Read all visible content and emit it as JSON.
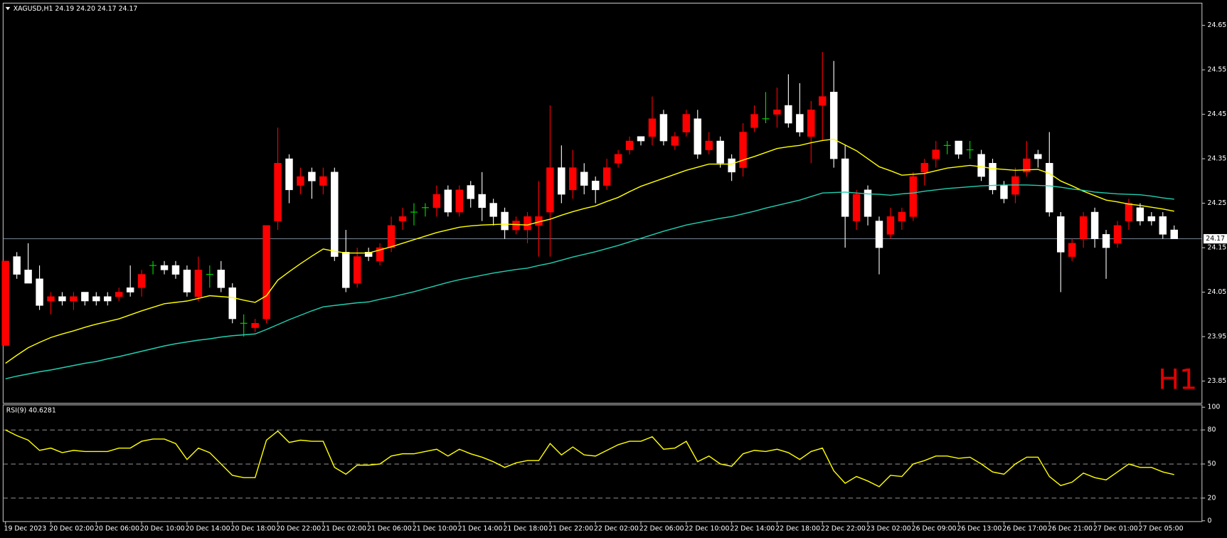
{
  "chart_data": [
    {
      "type": "candlestick",
      "title": "XAGUSD,H1  24.19 24.20 24.17 24.17",
      "watermark": "H1",
      "categories": [
        "19 Dec 2023",
        null,
        null,
        null,
        "20 Dec 02:00",
        null,
        null,
        null,
        "20 Dec 06:00",
        null,
        null,
        null,
        "20 Dec 10:00",
        null,
        null,
        null,
        "20 Dec 14:00",
        null,
        null,
        null,
        "20 Dec 18:00",
        null,
        null,
        null,
        "20 Dec 22:00",
        null,
        null,
        null,
        "21 Dec 02:00",
        null,
        null,
        null,
        "21 Dec 06:00",
        null,
        null,
        null,
        "21 Dec 10:00",
        null,
        null,
        null,
        "21 Dec 14:00",
        null,
        null,
        null,
        "21 Dec 18:00",
        null,
        null,
        null,
        "21 Dec 22:00",
        null,
        null,
        null,
        "22 Dec 02:00",
        null,
        null,
        null,
        "22 Dec 06:00",
        null,
        null,
        null,
        "22 Dec 10:00",
        null,
        null,
        null,
        "22 Dec 14:00",
        null,
        null,
        null,
        "22 Dec 18:00",
        null,
        null,
        null,
        "22 Dec 22:00",
        null,
        null,
        null,
        "23 Dec 02:00",
        null,
        null,
        null,
        "26 Dec 09:00",
        null,
        null,
        null,
        "26 Dec 13:00",
        null,
        null,
        null,
        "26 Dec 17:00",
        null,
        null,
        null,
        "26 Dec 21:00",
        null,
        null,
        null,
        "27 Dec 01:00",
        null,
        null,
        null,
        "27 Dec 05:00",
        null,
        null,
        null
      ],
      "open": [
        23.93,
        24.13,
        24.1,
        24.08,
        24.03,
        24.04,
        24.03,
        24.05,
        24.04,
        24.04,
        24.04,
        24.06,
        24.06,
        24.11,
        24.11,
        24.11,
        24.1,
        24.04,
        24.09,
        24.1,
        24.06,
        23.98,
        23.97,
        23.99,
        24.21,
        24.35,
        24.29,
        24.32,
        24.29,
        24.32,
        24.14,
        24.07,
        24.14,
        24.12,
        24.15,
        24.21,
        24.23,
        24.24,
        24.24,
        24.28,
        24.23,
        24.29,
        24.27,
        24.25,
        24.23,
        24.19,
        24.19,
        24.2,
        24.23,
        24.33,
        24.28,
        24.32,
        24.3,
        24.29,
        24.34,
        24.37,
        24.4,
        24.4,
        24.45,
        24.38,
        24.41,
        24.44,
        24.37,
        24.39,
        24.35,
        24.33,
        24.42,
        24.44,
        24.45,
        24.47,
        24.45,
        24.4,
        24.47,
        24.5,
        24.35,
        24.21,
        24.28,
        24.21,
        24.18,
        24.21,
        24.22,
        24.32,
        24.35,
        24.38,
        24.39,
        24.37,
        24.36,
        24.34,
        24.29,
        24.27,
        24.32,
        24.36,
        24.34,
        24.22,
        24.13,
        24.17,
        24.23,
        24.18,
        24.16,
        24.21,
        24.24,
        24.22,
        24.22,
        24.19
      ],
      "high": [
        24.12,
        24.14,
        24.16,
        24.11,
        24.05,
        24.05,
        24.05,
        24.05,
        24.05,
        24.05,
        24.06,
        24.11,
        24.1,
        24.12,
        24.12,
        24.12,
        24.11,
        24.13,
        24.11,
        24.12,
        24.07,
        24.0,
        23.99,
        24.2,
        24.42,
        24.36,
        24.33,
        24.33,
        24.33,
        24.33,
        24.19,
        24.15,
        24.15,
        24.16,
        24.22,
        24.24,
        24.25,
        24.25,
        24.29,
        24.29,
        24.29,
        24.3,
        24.32,
        24.26,
        24.24,
        24.22,
        24.23,
        24.3,
        24.47,
        24.38,
        24.37,
        24.34,
        24.31,
        24.35,
        24.37,
        24.4,
        24.4,
        24.49,
        24.46,
        24.41,
        24.46,
        24.46,
        24.41,
        24.4,
        24.36,
        24.43,
        24.47,
        24.5,
        24.51,
        24.54,
        24.52,
        24.48,
        24.59,
        24.57,
        24.38,
        24.28,
        24.29,
        24.22,
        24.24,
        24.24,
        24.32,
        24.35,
        24.39,
        24.39,
        24.39,
        24.39,
        24.37,
        24.35,
        24.3,
        24.33,
        24.39,
        24.37,
        24.41,
        24.23,
        24.17,
        24.23,
        24.24,
        24.19,
        24.21,
        24.26,
        24.25,
        24.23,
        24.23,
        24.2
      ],
      "low": [
        23.93,
        24.08,
        24.07,
        24.01,
        24.0,
        24.02,
        24.01,
        24.02,
        24.02,
        24.02,
        24.03,
        24.04,
        24.04,
        24.09,
        24.09,
        24.08,
        24.04,
        24.03,
        24.06,
        24.05,
        23.98,
        23.95,
        23.96,
        23.98,
        24.19,
        24.25,
        24.27,
        24.26,
        24.27,
        24.12,
        24.05,
        24.06,
        24.12,
        24.11,
        24.14,
        24.19,
        24.2,
        24.22,
        24.22,
        24.22,
        24.22,
        24.24,
        24.21,
        24.2,
        24.17,
        24.18,
        24.16,
        24.13,
        24.13,
        24.25,
        24.26,
        24.27,
        24.25,
        24.28,
        24.33,
        24.36,
        24.38,
        24.38,
        24.38,
        24.37,
        24.4,
        24.35,
        24.36,
        24.33,
        24.3,
        24.31,
        24.41,
        24.43,
        24.42,
        24.42,
        24.4,
        24.34,
        24.39,
        24.33,
        24.15,
        24.19,
        24.2,
        24.09,
        24.17,
        24.19,
        24.21,
        24.29,
        24.33,
        24.36,
        24.35,
        24.35,
        24.3,
        24.27,
        24.25,
        24.25,
        24.31,
        24.33,
        24.22,
        24.05,
        24.12,
        24.15,
        24.15,
        24.08,
        24.15,
        24.19,
        24.2,
        24.2,
        24.17,
        24.17
      ],
      "close": [
        24.12,
        24.09,
        24.07,
        24.02,
        24.04,
        24.03,
        24.04,
        24.03,
        24.03,
        24.03,
        24.05,
        24.05,
        24.09,
        24.11,
        24.1,
        24.09,
        24.05,
        24.1,
        24.09,
        24.06,
        23.99,
        23.98,
        23.98,
        24.2,
        24.34,
        24.28,
        24.31,
        24.3,
        24.31,
        24.13,
        24.06,
        24.13,
        24.13,
        24.15,
        24.2,
        24.22,
        24.23,
        24.24,
        24.27,
        24.23,
        24.28,
        24.26,
        24.24,
        24.22,
        24.19,
        24.21,
        24.22,
        24.22,
        24.33,
        24.27,
        24.33,
        24.29,
        24.28,
        24.33,
        24.36,
        24.39,
        24.39,
        24.44,
        24.39,
        24.4,
        24.45,
        24.36,
        24.39,
        24.34,
        24.32,
        24.41,
        24.45,
        24.44,
        24.46,
        24.43,
        24.41,
        24.46,
        24.49,
        24.35,
        24.22,
        24.27,
        24.22,
        24.15,
        24.22,
        24.23,
        24.31,
        24.34,
        24.37,
        24.38,
        24.36,
        24.37,
        24.31,
        24.28,
        24.26,
        24.31,
        24.35,
        24.35,
        24.23,
        24.14,
        24.16,
        24.22,
        24.17,
        24.15,
        24.2,
        24.25,
        24.21,
        24.21,
        24.18,
        24.17
      ],
      "up_color": "#ff0000",
      "down_color": "#ffffff",
      "doji_color": "#00e000",
      "series": [
        {
          "color": "#ffff00",
          "values": [
            23.89,
            23.908,
            23.925,
            23.937,
            23.948,
            23.956,
            23.963,
            23.971,
            23.978,
            23.984,
            23.99,
            23.999,
            24.008,
            24.016,
            24.024,
            24.027,
            24.03,
            24.036,
            24.042,
            24.04,
            24.038,
            24.032,
            24.027,
            24.042,
            24.077,
            24.096,
            24.114,
            24.131,
            24.147,
            24.142,
            24.138,
            24.138,
            24.138,
            24.145,
            24.152,
            24.16,
            24.168,
            24.176,
            24.184,
            24.19,
            24.196,
            24.199,
            24.201,
            24.202,
            24.203,
            24.202,
            24.201,
            24.208,
            24.214,
            24.223,
            24.231,
            24.238,
            24.244,
            24.254,
            24.263,
            24.276,
            24.288,
            24.297,
            24.306,
            24.315,
            24.324,
            24.331,
            24.338,
            24.338,
            24.338,
            24.347,
            24.355,
            24.364,
            24.373,
            24.377,
            24.38,
            24.386,
            24.391,
            24.394,
            24.381,
            24.368,
            24.35,
            24.332,
            24.323,
            24.313,
            24.315,
            24.317,
            24.323,
            24.329,
            24.332,
            24.335,
            24.332,
            24.328,
            24.326,
            24.324,
            24.325,
            24.326,
            24.317,
            24.3,
            24.289,
            24.277,
            24.267,
            24.257,
            24.253,
            24.248,
            24.245,
            24.241,
            24.237,
            24.232
          ]
        },
        {
          "color": "#20d0b0",
          "values": [
            23.855,
            23.861,
            23.866,
            23.871,
            23.875,
            23.88,
            23.885,
            23.89,
            23.894,
            23.9,
            23.905,
            23.911,
            23.917,
            23.923,
            23.929,
            23.934,
            23.938,
            23.942,
            23.945,
            23.949,
            23.952,
            23.954,
            23.956,
            23.966,
            23.977,
            23.988,
            23.998,
            24.008,
            24.017,
            24.02,
            24.023,
            24.026,
            24.028,
            24.034,
            24.039,
            24.045,
            24.051,
            24.058,
            24.065,
            24.072,
            24.078,
            24.083,
            24.088,
            24.093,
            24.097,
            24.101,
            24.104,
            24.11,
            24.115,
            24.122,
            24.129,
            24.135,
            24.141,
            24.148,
            24.155,
            24.163,
            24.171,
            24.179,
            24.187,
            24.194,
            24.201,
            24.206,
            24.211,
            24.216,
            24.22,
            24.226,
            24.232,
            24.239,
            24.245,
            24.251,
            24.257,
            24.265,
            24.273,
            24.274,
            24.275,
            24.273,
            24.271,
            24.27,
            24.268,
            24.271,
            24.273,
            24.277,
            24.28,
            24.283,
            24.285,
            24.287,
            24.289,
            24.29,
            24.291,
            24.291,
            24.291,
            24.29,
            24.289,
            24.286,
            24.282,
            24.279,
            24.275,
            24.273,
            24.271,
            24.27,
            24.269,
            24.266,
            24.262,
            24.259
          ]
        }
      ],
      "current_price": 24.17,
      "ylim": [
        23.8,
        24.7
      ],
      "yticks": [
        23.85,
        23.95,
        24.05,
        24.15,
        24.25,
        24.35,
        24.45,
        24.55,
        24.65
      ]
    },
    {
      "type": "line",
      "title": "RSI(9) 40.6281",
      "color": "#ffff00",
      "values": [
        80,
        75,
        71,
        62,
        64,
        60,
        62,
        61,
        61,
        61,
        64,
        64,
        70,
        72,
        72,
        68,
        54,
        64,
        60,
        50,
        40,
        38,
        38,
        71,
        79,
        69,
        71,
        70,
        70,
        47,
        41,
        49,
        49,
        50,
        57,
        59,
        59,
        61,
        63,
        57,
        63,
        59,
        56,
        52,
        47,
        51,
        53,
        53,
        68,
        58,
        65,
        58,
        57,
        62,
        67,
        70,
        70,
        74,
        63,
        64,
        70,
        52,
        57,
        50,
        48,
        59,
        62,
        61,
        63,
        60,
        54,
        61,
        64,
        44,
        33,
        39,
        35,
        30,
        40,
        39,
        50,
        53,
        57,
        57,
        55,
        56,
        50,
        43,
        41,
        50,
        56,
        56,
        39,
        31,
        34,
        42,
        38,
        36,
        43,
        50,
        47,
        47,
        43,
        40.63
      ],
      "levels": [
        20,
        50,
        80
      ],
      "ylim": [
        0,
        100
      ],
      "yticks": [
        0,
        20,
        50,
        80,
        100
      ]
    }
  ]
}
